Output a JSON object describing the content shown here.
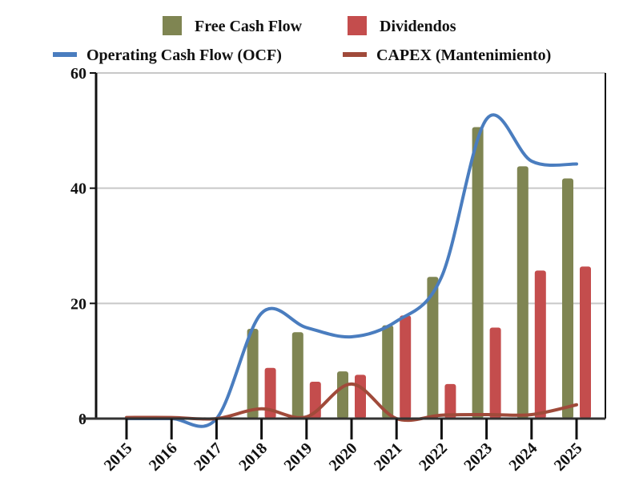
{
  "chart_data": {
    "type": "bar",
    "categories": [
      "2015",
      "2016",
      "2017",
      "2018",
      "2019",
      "2020",
      "2021",
      "2022",
      "2023",
      "2024",
      "2025"
    ],
    "ylim": [
      0,
      60
    ],
    "yticks": [
      0,
      20,
      40,
      60
    ],
    "grid": true,
    "legend_placement": "top",
    "series": [
      {
        "name": "Free Cash Flow",
        "kind": "bar",
        "color": "#7f8552",
        "values": [
          null,
          null,
          null,
          15.6,
          15.0,
          8.2,
          16.2,
          24.6,
          50.6,
          43.8,
          41.7
        ]
      },
      {
        "name": "Dividendos",
        "kind": "bar",
        "color": "#c44d4d",
        "values": [
          null,
          null,
          null,
          8.8,
          6.4,
          7.6,
          17.9,
          6.0,
          15.8,
          25.7,
          26.4
        ]
      },
      {
        "name": "Operating Cash Flow (OCF)",
        "kind": "line",
        "color": "#4a7dbf",
        "values": [
          0,
          0,
          0,
          18.3,
          15.8,
          14.2,
          16.9,
          24.6,
          52.0,
          44.7,
          44.2
        ]
      },
      {
        "name": "CAPEX (Mantenimiento)",
        "kind": "line",
        "color": "#a04a3a",
        "values": [
          0.2,
          0.2,
          0,
          1.7,
          0.3,
          6.0,
          0,
          0.6,
          0.7,
          0.7,
          2.4
        ]
      }
    ]
  }
}
